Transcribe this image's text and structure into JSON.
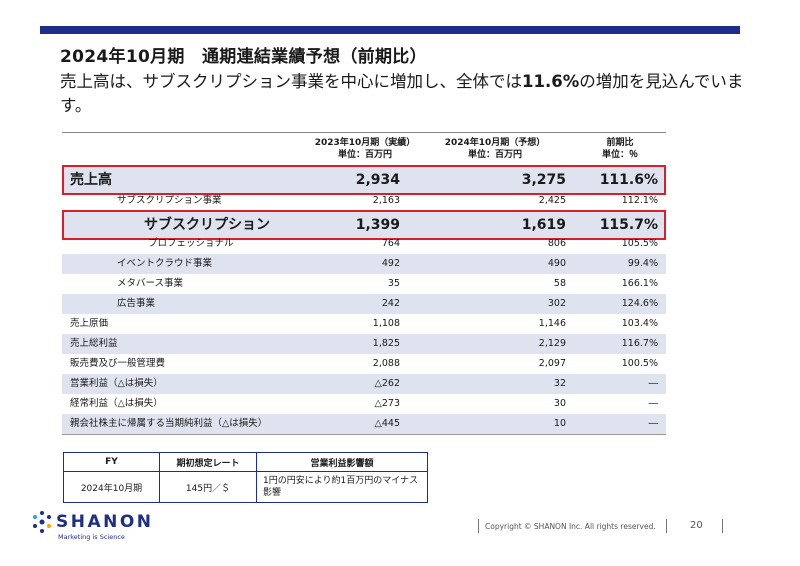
{
  "title": "2024年10月期　通期連結業績予想（前期比）",
  "subtitle_pre": "売上高は、サブスクリプション事業を中心に増加し、全体では",
  "subtitle_bold": "11.6%",
  "subtitle_post": "の増加を見込んでいます。",
  "table": {
    "col1_header": "2023年10月期（実績）",
    "col1_unit": "単位：百万円",
    "col2_header": "2024年10月期（予想）",
    "col2_unit": "単位：百万円",
    "col3_header": "前期比",
    "col3_unit": "単位：％",
    "rows": [
      {
        "label": "売上高",
        "v1": "2,934",
        "v2": "3,275",
        "v3": "111.6%"
      },
      {
        "label": "サブスクリプション事業",
        "v1": "2,163",
        "v2": "2,425",
        "v3": "112.1%"
      },
      {
        "label": "サブスクリプション",
        "v1": "1,399",
        "v2": "1,619",
        "v3": "115.7%"
      },
      {
        "label": "プロフェッショナル",
        "v1": "764",
        "v2": "806",
        "v3": "105.5%"
      },
      {
        "label": "イベントクラウド事業",
        "v1": "492",
        "v2": "490",
        "v3": "99.4%"
      },
      {
        "label": "メタバース事業",
        "v1": "35",
        "v2": "58",
        "v3": "166.1%"
      },
      {
        "label": "広告事業",
        "v1": "242",
        "v2": "302",
        "v3": "124.6%"
      },
      {
        "label": "売上原価",
        "v1": "1,108",
        "v2": "1,146",
        "v3": "103.4%"
      },
      {
        "label": "売上総利益",
        "v1": "1,825",
        "v2": "2,129",
        "v3": "116.7%"
      },
      {
        "label": "販売費及び一般管理費",
        "v1": "2,088",
        "v2": "2,097",
        "v3": "100.5%"
      },
      {
        "label": "営業利益（△は損失）",
        "v1": "△262",
        "v2": "32",
        "v3": "―"
      },
      {
        "label": "経常利益（△は損失）",
        "v1": "△273",
        "v2": "30",
        "v3": "―"
      },
      {
        "label": "親会社株主に帰属する当期純利益（△は損失）",
        "v1": "△445",
        "v2": "10",
        "v3": "―"
      }
    ]
  },
  "fx": {
    "h1": "FY",
    "h2": "期初想定レート",
    "h3": "営業利益影響額",
    "d1": "2024年10月期",
    "d2": "145円／＄",
    "d3": "1円の円安により約1百万円のマイナス影響"
  },
  "footer": {
    "logo_name": "SHANON",
    "logo_tag": "Marketing is Science",
    "copyright": "Copyright © SHANON Inc. All rights reserved.",
    "page": "20"
  },
  "colors": {
    "accent": "#1f2d8a",
    "highlight": "#d9202a",
    "shade": "#dfe3ef"
  }
}
